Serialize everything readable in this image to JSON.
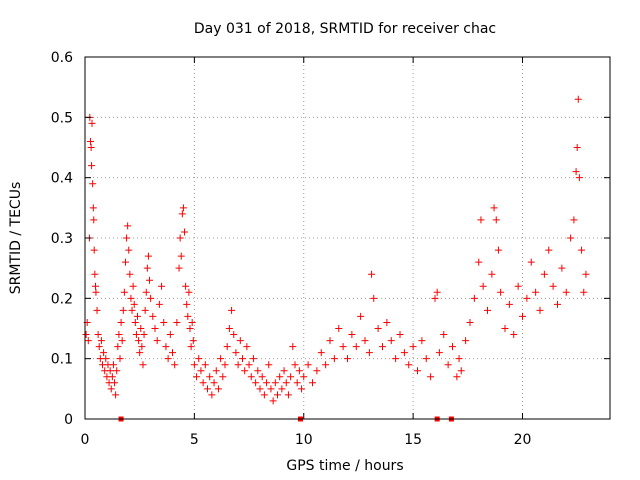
{
  "chart_data": {
    "type": "scatter",
    "title": "Day 031 of 2018, SRMTID for receiver chac",
    "xlabel": "GPS time / hours",
    "ylabel": "SRMTID / TECUs",
    "xlim": [
      0,
      24
    ],
    "ylim": [
      0,
      0.6
    ],
    "x_ticks": [
      0,
      5,
      10,
      15,
      20
    ],
    "x_tick_labels": [
      "0",
      "5",
      "10",
      "15",
      "20"
    ],
    "y_ticks": [
      0,
      0.1,
      0.2,
      0.3,
      0.4,
      0.5,
      0.6
    ],
    "y_tick_labels": [
      "0",
      "0.1",
      "0.2",
      "0.3",
      "0.4",
      "0.5",
      "0.6"
    ],
    "grid": true,
    "marker": "+",
    "color": "#ff0000",
    "series": [
      {
        "name": "SRMTID",
        "points": [
          [
            0.05,
            0.14
          ],
          [
            0.1,
            0.16
          ],
          [
            0.15,
            0.13
          ],
          [
            0.2,
            0.3
          ],
          [
            0.22,
            0.5
          ],
          [
            0.25,
            0.46
          ],
          [
            0.28,
            0.45
          ],
          [
            0.3,
            0.42
          ],
          [
            0.32,
            0.49
          ],
          [
            0.35,
            0.39
          ],
          [
            0.38,
            0.35
          ],
          [
            0.4,
            0.33
          ],
          [
            0.42,
            0.28
          ],
          [
            0.45,
            0.24
          ],
          [
            0.48,
            0.22
          ],
          [
            0.5,
            0.21
          ],
          [
            0.55,
            0.18
          ],
          [
            0.6,
            0.14
          ],
          [
            0.65,
            0.12
          ],
          [
            0.7,
            0.1
          ],
          [
            0.75,
            0.13
          ],
          [
            0.8,
            0.09
          ],
          [
            0.85,
            0.11
          ],
          [
            0.9,
            0.08
          ],
          [
            0.95,
            0.1
          ],
          [
            1.0,
            0.07
          ],
          [
            1.05,
            0.09
          ],
          [
            1.1,
            0.06
          ],
          [
            1.15,
            0.08
          ],
          [
            1.2,
            0.05
          ],
          [
            1.25,
            0.07
          ],
          [
            1.3,
            0.09
          ],
          [
            1.35,
            0.06
          ],
          [
            1.4,
            0.04
          ],
          [
            1.45,
            0.08
          ],
          [
            1.5,
            0.12
          ],
          [
            1.55,
            0.14
          ],
          [
            1.6,
            0.1
          ],
          [
            1.65,
            0.16
          ],
          [
            1.7,
            0.13
          ],
          [
            1.75,
            0.18
          ],
          [
            1.8,
            0.21
          ],
          [
            1.85,
            0.26
          ],
          [
            1.9,
            0.3
          ],
          [
            1.95,
            0.32
          ],
          [
            2.0,
            0.28
          ],
          [
            2.05,
            0.24
          ],
          [
            2.1,
            0.2
          ],
          [
            2.15,
            0.18
          ],
          [
            2.2,
            0.22
          ],
          [
            2.25,
            0.19
          ],
          [
            2.3,
            0.16
          ],
          [
            2.35,
            0.14
          ],
          [
            2.4,
            0.17
          ],
          [
            2.45,
            0.13
          ],
          [
            2.5,
            0.11
          ],
          [
            2.55,
            0.15
          ],
          [
            2.6,
            0.12
          ],
          [
            2.65,
            0.09
          ],
          [
            2.7,
            0.14
          ],
          [
            2.75,
            0.18
          ],
          [
            2.8,
            0.21
          ],
          [
            2.85,
            0.25
          ],
          [
            2.9,
            0.27
          ],
          [
            2.95,
            0.23
          ],
          [
            3.0,
            0.2
          ],
          [
            3.1,
            0.17
          ],
          [
            3.2,
            0.15
          ],
          [
            3.3,
            0.13
          ],
          [
            3.4,
            0.19
          ],
          [
            3.5,
            0.22
          ],
          [
            3.6,
            0.16
          ],
          [
            3.7,
            0.12
          ],
          [
            3.8,
            0.1
          ],
          [
            3.9,
            0.14
          ],
          [
            4.0,
            0.11
          ],
          [
            4.1,
            0.09
          ],
          [
            4.2,
            0.16
          ],
          [
            4.3,
            0.25
          ],
          [
            4.35,
            0.3
          ],
          [
            4.4,
            0.27
          ],
          [
            4.45,
            0.34
          ],
          [
            4.5,
            0.35
          ],
          [
            4.55,
            0.31
          ],
          [
            4.6,
            0.22
          ],
          [
            4.65,
            0.19
          ],
          [
            4.7,
            0.17
          ],
          [
            4.75,
            0.21
          ],
          [
            4.8,
            0.15
          ],
          [
            4.85,
            0.12
          ],
          [
            4.9,
            0.16
          ],
          [
            4.95,
            0.13
          ],
          [
            5.0,
            0.09
          ],
          [
            5.1,
            0.07
          ],
          [
            5.2,
            0.1
          ],
          [
            5.3,
            0.08
          ],
          [
            5.4,
            0.06
          ],
          [
            5.5,
            0.09
          ],
          [
            5.6,
            0.05
          ],
          [
            5.7,
            0.07
          ],
          [
            5.8,
            0.04
          ],
          [
            5.9,
            0.06
          ],
          [
            6.0,
            0.08
          ],
          [
            6.1,
            0.05
          ],
          [
            6.2,
            0.1
          ],
          [
            6.3,
            0.07
          ],
          [
            6.4,
            0.09
          ],
          [
            6.5,
            0.12
          ],
          [
            6.6,
            0.15
          ],
          [
            6.7,
            0.18
          ],
          [
            6.8,
            0.14
          ],
          [
            6.9,
            0.11
          ],
          [
            7.0,
            0.09
          ],
          [
            7.1,
            0.13
          ],
          [
            7.2,
            0.1
          ],
          [
            7.3,
            0.08
          ],
          [
            7.4,
            0.12
          ],
          [
            7.5,
            0.09
          ],
          [
            7.6,
            0.07
          ],
          [
            7.7,
            0.1
          ],
          [
            7.8,
            0.06
          ],
          [
            7.9,
            0.08
          ],
          [
            8.0,
            0.05
          ],
          [
            8.1,
            0.07
          ],
          [
            8.2,
            0.04
          ],
          [
            8.3,
            0.06
          ],
          [
            8.4,
            0.09
          ],
          [
            8.5,
            0.05
          ],
          [
            8.6,
            0.03
          ],
          [
            8.7,
            0.06
          ],
          [
            8.8,
            0.04
          ],
          [
            8.9,
            0.07
          ],
          [
            9.0,
            0.05
          ],
          [
            9.1,
            0.08
          ],
          [
            9.2,
            0.06
          ],
          [
            9.3,
            0.04
          ],
          [
            9.4,
            0.07
          ],
          [
            9.5,
            0.12
          ],
          [
            9.6,
            0.09
          ],
          [
            9.7,
            0.06
          ],
          [
            9.8,
            0.08
          ],
          [
            9.9,
            0.05
          ],
          [
            10.0,
            0.07
          ],
          [
            10.2,
            0.09
          ],
          [
            10.4,
            0.06
          ],
          [
            10.6,
            0.08
          ],
          [
            10.8,
            0.11
          ],
          [
            11.0,
            0.09
          ],
          [
            11.2,
            0.13
          ],
          [
            11.4,
            0.1
          ],
          [
            11.6,
            0.15
          ],
          [
            11.8,
            0.12
          ],
          [
            12.0,
            0.1
          ],
          [
            12.2,
            0.14
          ],
          [
            12.4,
            0.12
          ],
          [
            12.6,
            0.17
          ],
          [
            12.8,
            0.13
          ],
          [
            13.0,
            0.11
          ],
          [
            13.1,
            0.24
          ],
          [
            13.2,
            0.2
          ],
          [
            13.4,
            0.15
          ],
          [
            13.6,
            0.12
          ],
          [
            13.8,
            0.16
          ],
          [
            14.0,
            0.13
          ],
          [
            14.2,
            0.1
          ],
          [
            14.4,
            0.14
          ],
          [
            14.6,
            0.11
          ],
          [
            14.8,
            0.09
          ],
          [
            15.0,
            0.12
          ],
          [
            15.2,
            0.08
          ],
          [
            15.4,
            0.13
          ],
          [
            15.6,
            0.1
          ],
          [
            15.8,
            0.07
          ],
          [
            16.0,
            0.2
          ],
          [
            16.1,
            0.21
          ],
          [
            16.2,
            0.11
          ],
          [
            16.4,
            0.14
          ],
          [
            16.6,
            0.09
          ],
          [
            16.8,
            0.12
          ],
          [
            17.0,
            0.07
          ],
          [
            17.1,
            0.1
          ],
          [
            17.2,
            0.08
          ],
          [
            17.4,
            0.13
          ],
          [
            17.6,
            0.16
          ],
          [
            17.8,
            0.2
          ],
          [
            18.0,
            0.26
          ],
          [
            18.1,
            0.33
          ],
          [
            18.2,
            0.22
          ],
          [
            18.4,
            0.18
          ],
          [
            18.6,
            0.24
          ],
          [
            18.7,
            0.35
          ],
          [
            18.8,
            0.33
          ],
          [
            18.9,
            0.28
          ],
          [
            19.0,
            0.21
          ],
          [
            19.2,
            0.15
          ],
          [
            19.4,
            0.19
          ],
          [
            19.6,
            0.14
          ],
          [
            19.8,
            0.22
          ],
          [
            20.0,
            0.17
          ],
          [
            20.2,
            0.2
          ],
          [
            20.4,
            0.26
          ],
          [
            20.6,
            0.21
          ],
          [
            20.8,
            0.18
          ],
          [
            21.0,
            0.24
          ],
          [
            21.2,
            0.28
          ],
          [
            21.4,
            0.22
          ],
          [
            21.6,
            0.19
          ],
          [
            21.8,
            0.25
          ],
          [
            22.0,
            0.21
          ],
          [
            22.2,
            0.3
          ],
          [
            22.35,
            0.33
          ],
          [
            22.45,
            0.41
          ],
          [
            22.5,
            0.45
          ],
          [
            22.55,
            0.53
          ],
          [
            22.6,
            0.4
          ],
          [
            22.7,
            0.28
          ],
          [
            22.8,
            0.21
          ],
          [
            22.9,
            0.24
          ]
        ]
      }
    ],
    "zero_markers": [
      1.65,
      9.85,
      16.1,
      16.75
    ]
  }
}
